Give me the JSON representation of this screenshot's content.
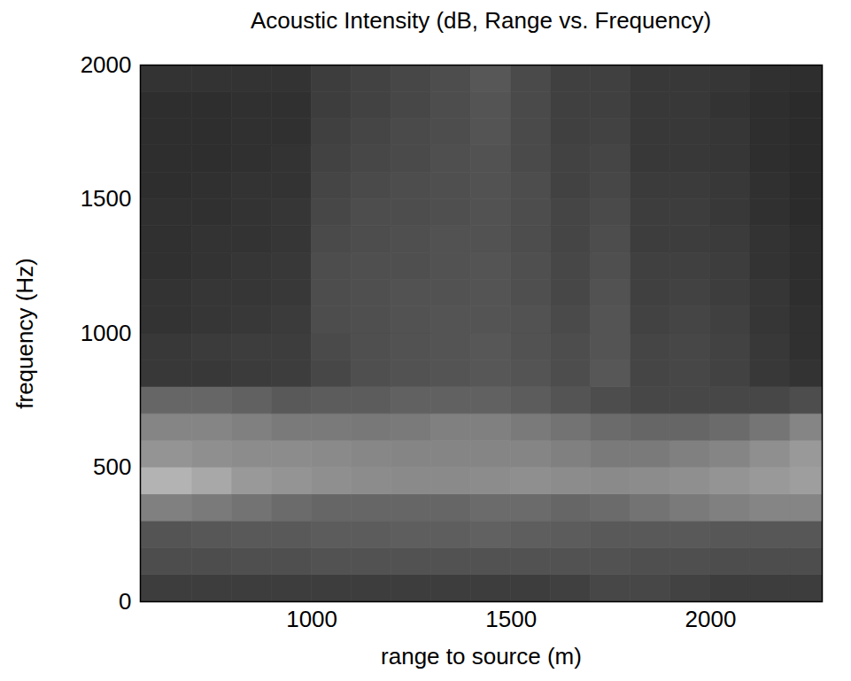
{
  "chart_data": {
    "type": "heatmap",
    "title": "Acoustic Intensity (dB, Range vs. Frequency)",
    "x_label": "range to source (m)",
    "y_label": "frequency (Hz)",
    "xlim": [
      570,
      2280
    ],
    "ylim": [
      0,
      2000
    ],
    "xticks": [
      1000,
      1500,
      2000
    ],
    "yticks": [
      0,
      500,
      1000,
      1500,
      2000
    ],
    "zlim": [
      0,
      100
    ],
    "x_edges": [
      570,
      700,
      800,
      900,
      1000,
      1100,
      1200,
      1300,
      1400,
      1500,
      1600,
      1700,
      1800,
      1900,
      2000,
      2100,
      2200,
      2280
    ],
    "y_edges": [
      0,
      100,
      200,
      300,
      400,
      500,
      600,
      700,
      800,
      900,
      1000,
      1100,
      1200,
      1300,
      1400,
      1500,
      1600,
      1700,
      1800,
      1900,
      2000
    ],
    "z": [
      [
        24,
        24,
        24,
        24,
        24,
        24,
        24,
        24,
        24,
        24,
        25,
        28,
        28,
        26,
        24,
        24,
        24
      ],
      [
        30,
        30,
        31,
        31,
        32,
        32,
        32,
        32,
        32,
        32,
        32,
        32,
        31,
        31,
        30,
        30,
        30
      ],
      [
        33,
        34,
        35,
        35,
        36,
        36,
        37,
        37,
        38,
        37,
        36,
        35,
        35,
        35,
        34,
        34,
        34
      ],
      [
        50,
        48,
        45,
        42,
        40,
        40,
        40,
        40,
        42,
        42,
        40,
        42,
        45,
        48,
        50,
        52,
        52
      ],
      [
        70,
        66,
        60,
        58,
        56,
        55,
        54,
        54,
        55,
        56,
        55,
        54,
        55,
        56,
        58,
        60,
        62
      ],
      [
        58,
        56,
        55,
        55,
        54,
        53,
        52,
        52,
        52,
        52,
        50,
        48,
        48,
        50,
        52,
        56,
        60
      ],
      [
        52,
        52,
        50,
        48,
        48,
        47,
        48,
        50,
        50,
        48,
        45,
        42,
        40,
        40,
        42,
        46,
        52
      ],
      [
        40,
        40,
        38,
        35,
        36,
        36,
        38,
        38,
        38,
        36,
        33,
        30,
        28,
        28,
        28,
        28,
        30
      ],
      [
        22,
        22,
        23,
        24,
        28,
        31,
        32,
        33,
        34,
        33,
        30,
        34,
        27,
        28,
        26,
        22,
        20
      ],
      [
        22,
        23,
        24,
        24,
        29,
        31,
        32,
        33,
        34,
        32,
        30,
        33,
        27,
        28,
        26,
        22,
        19
      ],
      [
        20,
        21,
        22,
        23,
        30,
        31,
        32,
        33,
        33,
        32,
        29,
        33,
        26,
        27,
        25,
        21,
        19
      ],
      [
        20,
        21,
        21,
        22,
        30,
        31,
        32,
        32,
        33,
        31,
        28,
        32,
        25,
        26,
        24,
        21,
        18
      ],
      [
        19,
        20,
        21,
        22,
        30,
        31,
        31,
        32,
        33,
        31,
        28,
        31,
        25,
        25,
        24,
        20,
        18
      ],
      [
        19,
        20,
        20,
        21,
        29,
        30,
        31,
        32,
        32,
        30,
        27,
        30,
        24,
        24,
        23,
        20,
        18
      ],
      [
        19,
        19,
        20,
        21,
        28,
        30,
        30,
        31,
        32,
        30,
        27,
        29,
        24,
        24,
        22,
        19,
        17
      ],
      [
        18,
        19,
        20,
        20,
        27,
        29,
        30,
        31,
        32,
        30,
        26,
        28,
        23,
        23,
        22,
        19,
        17
      ],
      [
        18,
        18,
        19,
        20,
        26,
        28,
        29,
        31,
        32,
        29,
        26,
        27,
        22,
        22,
        21,
        18,
        17
      ],
      [
        18,
        18,
        19,
        19,
        25,
        27,
        29,
        30,
        33,
        29,
        25,
        26,
        22,
        22,
        21,
        18,
        17
      ],
      [
        18,
        18,
        19,
        19,
        24,
        26,
        28,
        30,
        33,
        29,
        25,
        25,
        22,
        22,
        20,
        18,
        17
      ],
      [
        20,
        20,
        20,
        20,
        24,
        26,
        28,
        30,
        34,
        29,
        25,
        25,
        22,
        22,
        21,
        19,
        18
      ]
    ]
  }
}
